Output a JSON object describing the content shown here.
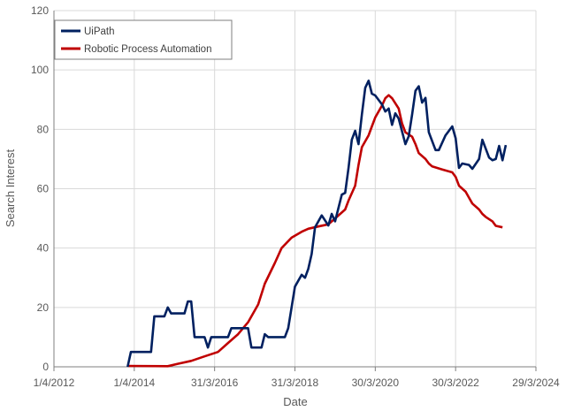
{
  "chart_data": {
    "type": "line",
    "xlabel": "Date",
    "ylabel": "Search Interest",
    "ylim": [
      0,
      120
    ],
    "yticks": [
      "0",
      "20",
      "40",
      "60",
      "80",
      "100",
      "120"
    ],
    "xlim": [
      "2012-04",
      "2024-04"
    ],
    "xticks": [
      "1/4/2012",
      "1/4/2014",
      "31/3/2016",
      "31/3/2018",
      "30/3/2020",
      "30/3/2022",
      "29/3/2024"
    ],
    "grid": true,
    "legend_position": "top-left",
    "series": [
      {
        "name": "UiPath",
        "color": "#002060",
        "points": [
          [
            "2014-02",
            0
          ],
          [
            "2014-03",
            5
          ],
          [
            "2014-09",
            5
          ],
          [
            "2014-10",
            17
          ],
          [
            "2015-01",
            17
          ],
          [
            "2015-02",
            20
          ],
          [
            "2015-03",
            18
          ],
          [
            "2015-07",
            18
          ],
          [
            "2015-08",
            22
          ],
          [
            "2015-09",
            22
          ],
          [
            "2015-10",
            10
          ],
          [
            "2016-01",
            10
          ],
          [
            "2016-02",
            6.5
          ],
          [
            "2016-03",
            10
          ],
          [
            "2016-08",
            10
          ],
          [
            "2016-09",
            13
          ],
          [
            "2017-02",
            13
          ],
          [
            "2017-03",
            6.5
          ],
          [
            "2017-06",
            6.5
          ],
          [
            "2017-07",
            11
          ],
          [
            "2017-08",
            10
          ],
          [
            "2018-01",
            10
          ],
          [
            "2018-02",
            13
          ],
          [
            "2018-03",
            20
          ],
          [
            "2018-04",
            27
          ],
          [
            "2018-06",
            31
          ],
          [
            "2018-07",
            30
          ],
          [
            "2018-08",
            33
          ],
          [
            "2018-09",
            38
          ],
          [
            "2018-10",
            47
          ],
          [
            "2018-12",
            51
          ],
          [
            "2019-02",
            47.6
          ],
          [
            "2019-03",
            51.5
          ],
          [
            "2019-04",
            49
          ],
          [
            "2019-06",
            58
          ],
          [
            "2019-07",
            58.6
          ],
          [
            "2019-08",
            67
          ],
          [
            "2019-09",
            76.5
          ],
          [
            "2019-10",
            79.5
          ],
          [
            "2019-11",
            75
          ],
          [
            "2019-12",
            85
          ],
          [
            "2020-01",
            94
          ],
          [
            "2020-02",
            96.4
          ],
          [
            "2020-03",
            92
          ],
          [
            "2020-04",
            91.4
          ],
          [
            "2020-06",
            88.4
          ],
          [
            "2020-07",
            86
          ],
          [
            "2020-08",
            87
          ],
          [
            "2020-09",
            81.5
          ],
          [
            "2020-10",
            85.4
          ],
          [
            "2020-11",
            83.6
          ],
          [
            "2021-01",
            75
          ],
          [
            "2021-02",
            77.7
          ],
          [
            "2021-03",
            85
          ],
          [
            "2021-04",
            93
          ],
          [
            "2021-05",
            94.5
          ],
          [
            "2021-06",
            89
          ],
          [
            "2021-07",
            90.6
          ],
          [
            "2021-08",
            79
          ],
          [
            "2021-10",
            73
          ],
          [
            "2021-11",
            73
          ],
          [
            "2022-01",
            78
          ],
          [
            "2022-03",
            81
          ],
          [
            "2022-04",
            77
          ],
          [
            "2022-05",
            67
          ],
          [
            "2022-06",
            68.5
          ],
          [
            "2022-08",
            68
          ],
          [
            "2022-09",
            66.7
          ],
          [
            "2022-11",
            70
          ],
          [
            "2022-12",
            76.5
          ],
          [
            "2023-02",
            70.5
          ],
          [
            "2023-03",
            69.6
          ],
          [
            "2023-04",
            70
          ],
          [
            "2023-05",
            74.4
          ],
          [
            "2023-06",
            69.6
          ],
          [
            "2023-07",
            74.7
          ]
        ]
      },
      {
        "name": "Robotic Process Automation",
        "color": "#C00000",
        "points": [
          [
            "2014-02",
            0.3
          ],
          [
            "2015-02",
            0.2
          ],
          [
            "2015-05",
            1
          ],
          [
            "2015-09",
            2
          ],
          [
            "2016-01",
            3.5
          ],
          [
            "2016-05",
            5
          ],
          [
            "2016-08",
            8
          ],
          [
            "2016-11",
            11
          ],
          [
            "2017-02",
            15
          ],
          [
            "2017-05",
            21
          ],
          [
            "2017-07",
            28
          ],
          [
            "2017-10",
            35
          ],
          [
            "2017-12",
            40
          ],
          [
            "2018-03",
            43.5
          ],
          [
            "2018-06",
            45.5
          ],
          [
            "2018-08",
            46.5
          ],
          [
            "2018-11",
            47.3
          ],
          [
            "2019-02",
            48
          ],
          [
            "2019-04",
            50
          ],
          [
            "2019-07",
            53
          ],
          [
            "2019-08",
            56
          ],
          [
            "2019-10",
            61
          ],
          [
            "2019-11",
            68
          ],
          [
            "2019-12",
            74
          ],
          [
            "2020-02",
            78
          ],
          [
            "2020-03",
            81
          ],
          [
            "2020-04",
            84
          ],
          [
            "2020-06",
            88
          ],
          [
            "2020-07",
            90.5
          ],
          [
            "2020-08",
            91.5
          ],
          [
            "2020-09",
            90.5
          ],
          [
            "2020-11",
            87
          ],
          [
            "2020-12",
            82
          ],
          [
            "2021-01",
            79
          ],
          [
            "2021-03",
            77.5
          ],
          [
            "2021-04",
            75
          ],
          [
            "2021-05",
            72
          ],
          [
            "2021-07",
            70
          ],
          [
            "2021-08",
            68.5
          ],
          [
            "2021-09",
            67.5
          ],
          [
            "2021-12",
            66.5
          ],
          [
            "2022-03",
            65.5
          ],
          [
            "2022-04",
            64
          ],
          [
            "2022-05",
            61
          ],
          [
            "2022-07",
            59
          ],
          [
            "2022-08",
            57
          ],
          [
            "2022-09",
            55
          ],
          [
            "2022-11",
            53
          ],
          [
            "2022-12",
            51.5
          ],
          [
            "2023-01",
            50.5
          ],
          [
            "2023-03",
            49
          ],
          [
            "2023-04",
            47.5
          ],
          [
            "2023-06",
            47
          ]
        ]
      }
    ]
  }
}
